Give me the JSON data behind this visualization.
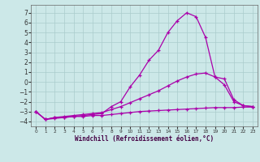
{
  "background_color": "#cce8e8",
  "grid_color": "#aacccc",
  "line_color": "#aa00aa",
  "x_label": "Windchill (Refroidissement éolien,°C)",
  "x_ticks": [
    0,
    1,
    2,
    3,
    4,
    5,
    6,
    7,
    8,
    9,
    10,
    11,
    12,
    13,
    14,
    15,
    16,
    17,
    18,
    19,
    20,
    21,
    22,
    23
  ],
  "ylim": [
    -4.5,
    7.8
  ],
  "xlim": [
    -0.5,
    23.5
  ],
  "yticks": [
    -4,
    -3,
    -2,
    -1,
    0,
    1,
    2,
    3,
    4,
    5,
    6,
    7
  ],
  "series1_x": [
    0,
    1,
    2,
    3,
    4,
    5,
    6,
    7,
    8,
    9,
    10,
    11,
    12,
    13,
    14,
    15,
    16,
    17,
    18,
    19,
    20,
    21,
    22,
    23
  ],
  "series1_y": [
    -3.0,
    -3.8,
    -3.6,
    -3.6,
    -3.5,
    -3.5,
    -3.4,
    -3.4,
    -3.3,
    -3.2,
    -3.1,
    -3.0,
    -2.95,
    -2.9,
    -2.85,
    -2.8,
    -2.75,
    -2.7,
    -2.65,
    -2.6,
    -2.6,
    -2.6,
    -2.55,
    -2.55
  ],
  "series2_x": [
    0,
    1,
    2,
    3,
    4,
    5,
    6,
    7,
    8,
    9,
    10,
    11,
    12,
    13,
    14,
    15,
    16,
    17,
    18,
    19,
    20,
    21,
    22,
    23
  ],
  "series2_y": [
    -3.0,
    -3.8,
    -3.6,
    -3.5,
    -3.4,
    -3.3,
    -3.2,
    -3.1,
    -2.8,
    -2.5,
    -2.1,
    -1.7,
    -1.3,
    -0.9,
    -0.4,
    0.1,
    0.5,
    0.8,
    0.9,
    0.5,
    -0.3,
    -2.0,
    -2.4,
    -2.5
  ],
  "series3_x": [
    0,
    1,
    2,
    3,
    4,
    5,
    6,
    7,
    8,
    9,
    10,
    11,
    12,
    13,
    14,
    15,
    16,
    17,
    18,
    19,
    20,
    21,
    22,
    23
  ],
  "series3_y": [
    -3.0,
    -3.8,
    -3.7,
    -3.6,
    -3.5,
    -3.4,
    -3.3,
    -3.2,
    -2.5,
    -2.0,
    -0.5,
    0.7,
    2.2,
    3.2,
    5.0,
    6.2,
    7.0,
    6.6,
    4.5,
    0.5,
    0.3,
    -1.8,
    -2.4,
    -2.5
  ]
}
